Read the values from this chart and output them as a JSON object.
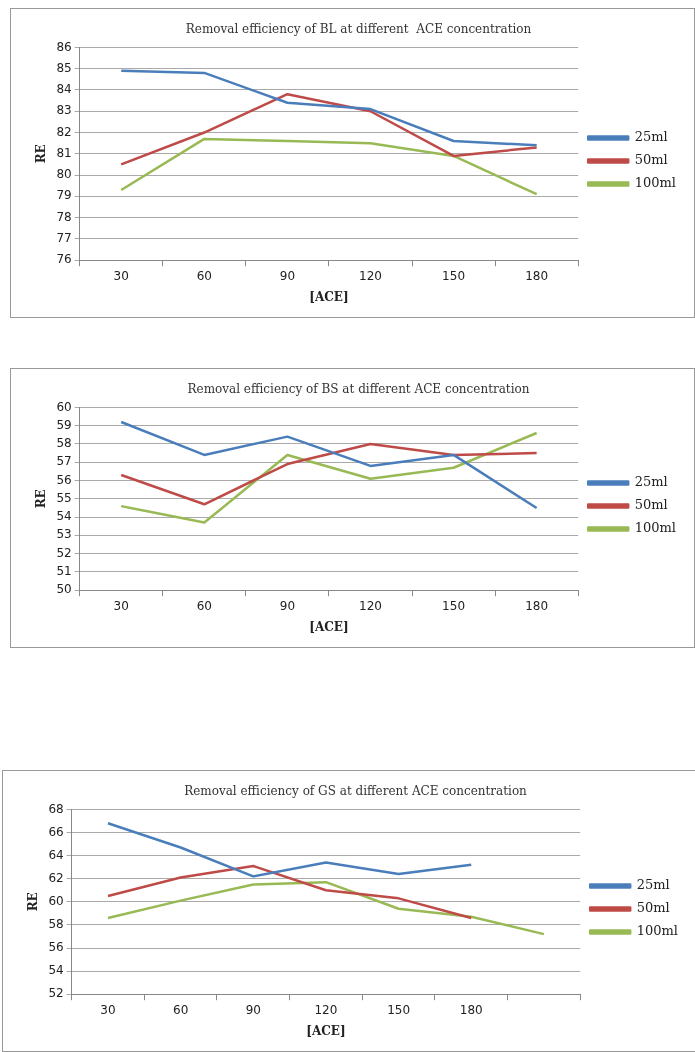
{
  "chart_data": [
    {
      "type": "line",
      "title": "Removal efficiency of BL at different  ACE concentration",
      "xlabel": "[ACE]",
      "ylabel": "RE",
      "categories": [
        "30",
        "60",
        "90",
        "120",
        "150",
        "180"
      ],
      "ylim": [
        76,
        86
      ],
      "yticks": [
        76,
        77,
        78,
        79,
        80,
        81,
        82,
        83,
        84,
        85,
        86
      ],
      "grid": "y",
      "legend": "right",
      "marker": "none",
      "series": [
        {
          "name": "25ml",
          "color": "#4a7ebb",
          "values": [
            84.9,
            84.8,
            83.4,
            83.1,
            81.6,
            81.4
          ]
        },
        {
          "name": "50ml",
          "color": "#be4b48",
          "values": [
            80.5,
            82.0,
            83.8,
            83.0,
            80.9,
            81.3
          ]
        },
        {
          "name": "100ml",
          "color": "#98b954",
          "values": [
            79.3,
            81.7,
            81.6,
            81.5,
            80.9,
            79.1
          ]
        }
      ]
    },
    {
      "type": "line",
      "title": "Removal efficiency of BS at different ACE concentration",
      "xlabel": "[ACE]",
      "ylabel": "RE",
      "categories": [
        "30",
        "60",
        "90",
        "120",
        "150",
        "180"
      ],
      "ylim": [
        50,
        60
      ],
      "yticks": [
        50,
        51,
        52,
        53,
        54,
        55,
        56,
        57,
        58,
        59,
        60
      ],
      "grid": "y",
      "legend": "right",
      "marker": "none",
      "series": [
        {
          "name": "25ml",
          "color": "#4a7ebb",
          "values": [
            59.2,
            57.4,
            58.4,
            56.8,
            57.4,
            54.5
          ]
        },
        {
          "name": "50ml",
          "color": "#be4b48",
          "values": [
            56.3,
            54.7,
            56.9,
            58.0,
            57.4,
            57.5
          ]
        },
        {
          "name": "100ml",
          "color": "#98b954",
          "values": [
            54.6,
            53.7,
            57.4,
            56.1,
            56.7,
            58.6
          ]
        }
      ]
    },
    {
      "type": "line",
      "title": "Removal efficiency of GS at different ACE concentration",
      "xlabel": "[ACE]",
      "ylabel": "RE",
      "categories": [
        "30",
        "60",
        "90",
        "120",
        "150",
        "180",
        null
      ],
      "ylim": [
        52,
        68
      ],
      "yticks": [
        52,
        54,
        56,
        58,
        60,
        62,
        64,
        66,
        68
      ],
      "grid": "y",
      "legend": "right",
      "marker": "none",
      "series": [
        {
          "name": "25ml",
          "color": "#4a7ebb",
          "values": [
            66.8,
            64.7,
            62.2,
            63.4,
            62.4,
            63.2,
            null
          ]
        },
        {
          "name": "50ml",
          "color": "#be4b48",
          "values": [
            60.5,
            62.1,
            63.1,
            61.0,
            60.3,
            58.6,
            null
          ]
        },
        {
          "name": "100ml",
          "color": "#98b954",
          "values": [
            58.6,
            60.1,
            61.5,
            61.7,
            59.4,
            58.7,
            57.2
          ]
        }
      ]
    }
  ]
}
